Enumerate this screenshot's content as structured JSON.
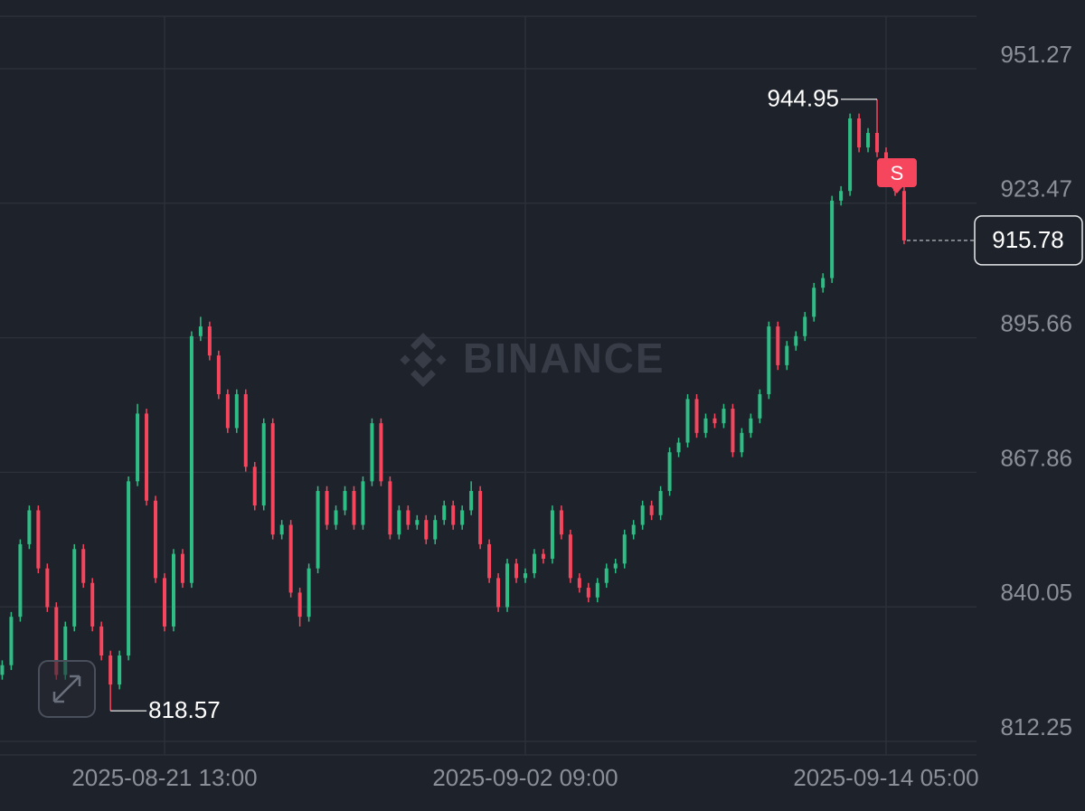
{
  "chart_data": {
    "type": "candlestick",
    "watermark": "BINANCE",
    "signal": "S",
    "up_color": "#2ebd85",
    "down_color": "#f6465d",
    "grid": true,
    "ylim": [
      809.45,
      965.47
    ],
    "yticks": [
      951.27,
      923.47,
      895.66,
      867.86,
      840.05,
      812.25
    ],
    "categories": [
      null,
      null,
      null,
      null,
      null,
      null,
      null,
      null,
      null,
      null,
      null,
      null,
      null,
      null,
      null,
      null,
      null,
      null,
      "2025-08-21 13:00",
      null,
      null,
      null,
      null,
      null,
      null,
      null,
      null,
      null,
      null,
      null,
      null,
      null,
      null,
      null,
      null,
      null,
      null,
      null,
      null,
      null,
      null,
      null,
      null,
      null,
      null,
      null,
      null,
      null,
      null,
      null,
      null,
      null,
      null,
      null,
      null,
      null,
      null,
      null,
      "2025-09-02 09:00",
      null,
      null,
      null,
      null,
      null,
      null,
      null,
      null,
      null,
      null,
      null,
      null,
      null,
      null,
      null,
      null,
      null,
      null,
      null,
      null,
      null,
      null,
      null,
      null,
      null,
      null,
      null,
      null,
      null,
      null,
      null,
      null,
      null,
      null,
      null,
      null,
      null,
      null,
      null,
      "2025-09-14 05:00",
      null,
      null
    ],
    "open": [
      826,
      828,
      838,
      853,
      860,
      848,
      840,
      826,
      836,
      852,
      845,
      836,
      830,
      824,
      830,
      866,
      880,
      862,
      846,
      836,
      851,
      845,
      896,
      898,
      892,
      884,
      877,
      884,
      869,
      861,
      878,
      855,
      857,
      843,
      838,
      848,
      864,
      857,
      860,
      864,
      857,
      866,
      878,
      866,
      855,
      860,
      857,
      858,
      854,
      858,
      861,
      857,
      860,
      864,
      853,
      846,
      840,
      849,
      846,
      847,
      851,
      850,
      860,
      855,
      846,
      844,
      842,
      845,
      848,
      849,
      855,
      857,
      861,
      859,
      864,
      872,
      874,
      883,
      876,
      879,
      878,
      881,
      872,
      876,
      879,
      884,
      898,
      890,
      894,
      896,
      900,
      906,
      908,
      924,
      926,
      941,
      935,
      938,
      934,
      928,
      926
    ],
    "high": [
      829,
      839,
      854,
      861,
      861,
      849,
      841,
      837,
      853,
      853,
      846,
      837,
      831,
      831,
      867,
      882,
      881,
      863,
      847,
      852,
      852,
      897,
      900,
      899,
      893,
      885,
      885,
      885,
      870,
      879,
      879,
      858,
      858,
      844,
      849,
      865,
      865,
      861,
      865,
      865,
      867,
      879,
      879,
      867,
      861,
      861,
      859,
      859,
      859,
      862,
      862,
      861,
      866,
      865,
      854,
      847,
      850,
      850,
      848,
      852,
      852,
      861,
      861,
      856,
      847,
      845,
      846,
      849,
      850,
      856,
      858,
      862,
      862,
      865,
      873,
      875,
      884,
      884,
      880,
      880,
      882,
      882,
      877,
      880,
      885,
      899,
      899,
      895,
      897,
      901,
      907,
      909,
      925,
      927,
      942,
      942,
      939,
      944.95,
      935,
      929,
      927
    ],
    "low": [
      825,
      827,
      837,
      852,
      847,
      839,
      825,
      825,
      835,
      844,
      835,
      829,
      818.57,
      823,
      829,
      865,
      861,
      845,
      835,
      835,
      844,
      844,
      895,
      891,
      883,
      876,
      876,
      868,
      860,
      860,
      854,
      854,
      842,
      836,
      837,
      847,
      856,
      856,
      859,
      856,
      856,
      865,
      865,
      854,
      854,
      856,
      856,
      853,
      853,
      857,
      856,
      856,
      859,
      852,
      845,
      839,
      839,
      845,
      845,
      846,
      849,
      849,
      854,
      845,
      843,
      841,
      841,
      844,
      847,
      848,
      854,
      856,
      858,
      858,
      863,
      871,
      873,
      875,
      875,
      877,
      877,
      871,
      871,
      875,
      878,
      883,
      889,
      889,
      893,
      895,
      899,
      905,
      907,
      923,
      925,
      934,
      934,
      933,
      927,
      925,
      915
    ],
    "close": [
      828,
      838,
      853,
      860,
      848,
      840,
      826,
      836,
      852,
      845,
      836,
      830,
      824,
      830,
      866,
      880,
      862,
      846,
      836,
      851,
      845,
      896,
      898,
      892,
      884,
      877,
      884,
      869,
      861,
      878,
      855,
      857,
      843,
      838,
      848,
      864,
      857,
      860,
      864,
      857,
      866,
      878,
      866,
      855,
      860,
      857,
      858,
      854,
      858,
      861,
      857,
      860,
      864,
      853,
      846,
      840,
      849,
      846,
      847,
      851,
      850,
      860,
      855,
      846,
      844,
      842,
      845,
      848,
      849,
      855,
      857,
      861,
      859,
      864,
      872,
      874,
      883,
      876,
      879,
      878,
      881,
      872,
      876,
      879,
      884,
      898,
      890,
      894,
      896,
      900,
      906,
      908,
      924,
      926,
      941,
      935,
      938,
      934,
      928,
      926,
      915.78
    ]
  }
}
